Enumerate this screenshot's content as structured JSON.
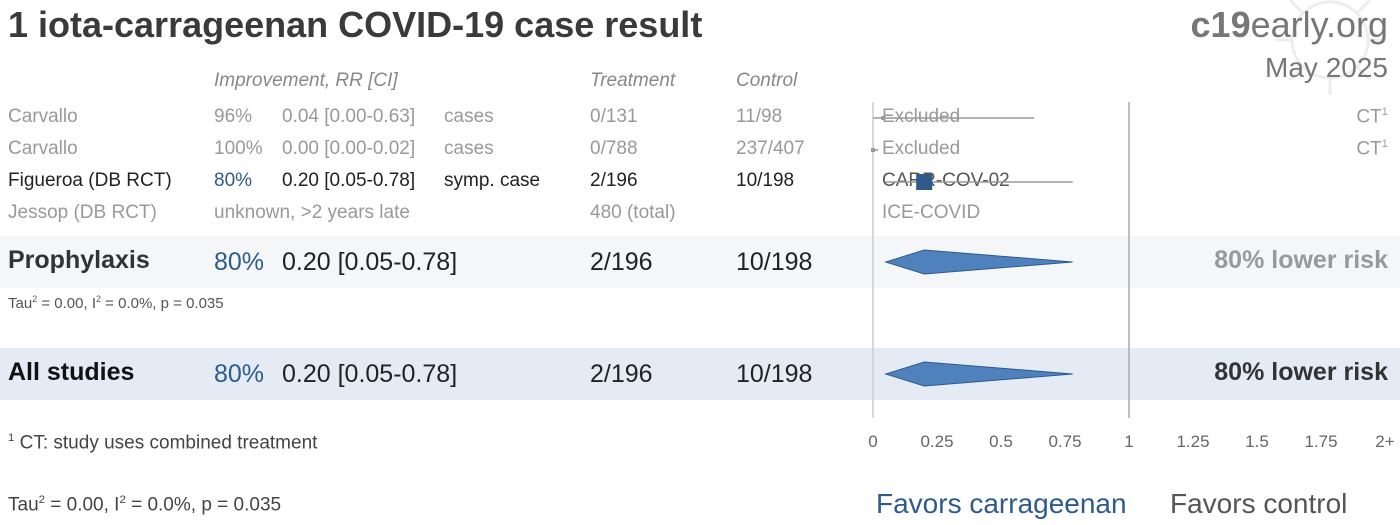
{
  "title": "1 iota-carrageenan COVID-19 case result",
  "site_prefix": "c19",
  "site_suffix": "early.org",
  "date": "May 2025",
  "headers": {
    "improvement": "Improvement, RR [CI]",
    "treatment": "Treatment",
    "control": "Control"
  },
  "rows": [
    {
      "name": "Carvallo",
      "improvement": "96%",
      "rr": "0.04 [0.00-0.63]",
      "outcome": "cases",
      "treatment": "0/131",
      "control": "11/98",
      "label": "Excluded",
      "note": "CT",
      "note_sup": "1"
    },
    {
      "name": "Carvallo",
      "improvement": "100%",
      "rr": "0.00 [0.00-0.02]",
      "outcome": "cases",
      "treatment": "0/788",
      "control": "237/407",
      "label": "Excluded",
      "note": "CT",
      "note_sup": "1"
    },
    {
      "name": "Figueroa (DB RCT)",
      "improvement": "80%",
      "rr": "0.20 [0.05-0.78]",
      "outcome": "symp. case",
      "treatment": "2/196",
      "control": "10/198",
      "label": "CARR-COV-02",
      "note": "",
      "note_sup": ""
    },
    {
      "name": "Jessop (DB RCT)",
      "improvement": "unknown, >2 years late",
      "rr": "",
      "outcome": "",
      "treatment": "480 (total)",
      "control": "",
      "label": "ICE-COVID",
      "note": "",
      "note_sup": ""
    }
  ],
  "summaries": [
    {
      "name": "Prophylaxis",
      "improvement": "80%",
      "rr": "0.20 [0.05-0.78]",
      "treatment": "2/196",
      "control": "10/198",
      "risk": "80% lower risk",
      "stats": {
        "tau": "Tau",
        "tau_sup": "2",
        "tau_val": " = 0.00, I",
        "i_sup": "2",
        "rest": " = 0.0%, p = 0.035"
      }
    },
    {
      "name": "All studies",
      "improvement": "80%",
      "rr": "0.20 [0.05-0.78]",
      "treatment": "2/196",
      "control": "10/198",
      "risk": "80% lower risk"
    }
  ],
  "footnote": {
    "sup": "1",
    "text": " CT: study uses combined treatment"
  },
  "bottom_stats": {
    "tau": "Tau",
    "tau_sup": "2",
    "tau_val": " = 0.00, I",
    "i_sup": "2",
    "rest": " = 0.0%, p = 0.035"
  },
  "favors_left": "Favors carrageenan",
  "favors_right": "Favors control",
  "colors": {
    "accent": "#2e5b8c",
    "marker": "#2e5b8c",
    "diamond": "#4f81bd",
    "band1": "#f4f6f8",
    "band2": "#e4ebf5"
  },
  "chart_data": {
    "type": "forest",
    "x_ticks": [
      "0",
      "0.25",
      "0.5",
      "0.75",
      "1",
      "1.25",
      "1.5",
      "1.75",
      "2+"
    ],
    "xlim": [
      0,
      2
    ],
    "studies": [
      {
        "label": "Excluded",
        "rr": 0.04,
        "lo": 0.0,
        "hi": 0.63
      },
      {
        "label": "Excluded",
        "rr": 0.0,
        "lo": 0.0,
        "hi": 0.02
      },
      {
        "label": "CARR-COV-02",
        "rr": 0.2,
        "lo": 0.05,
        "hi": 0.78
      },
      {
        "label": "ICE-COVID",
        "rr": null,
        "lo": null,
        "hi": null
      }
    ],
    "summaries": [
      {
        "label": "Prophylaxis",
        "rr": 0.2,
        "lo": 0.05,
        "hi": 0.78
      },
      {
        "label": "All studies",
        "rr": 0.2,
        "lo": 0.05,
        "hi": 0.78
      }
    ]
  }
}
